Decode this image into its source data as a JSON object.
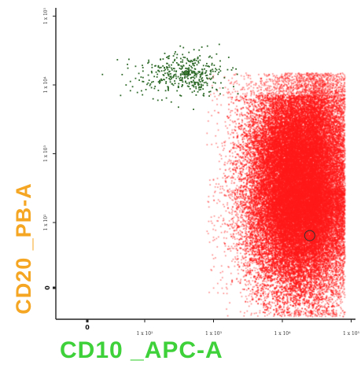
{
  "chart_data": {
    "type": "scatter",
    "title": "",
    "xlabel": "CD10 _APC-A",
    "ylabel": "CD20 _PB-A",
    "x_scale": "biexponential",
    "y_scale": "biexponential",
    "x_ticks": [
      "0",
      "1 x 10²",
      "1 x 10³",
      "1 x 10⁴",
      "1 x 10⁵"
    ],
    "y_ticks": [
      "0",
      "1 x 10²",
      "1 x 10³",
      "1 x 10⁴",
      "1 x 10⁵"
    ],
    "xlim": [
      -100,
      150000
    ],
    "ylim": [
      -100,
      150000
    ],
    "series": [
      {
        "color": "#2f6b2a",
        "center": {
          "x": 400,
          "y": 15000
        },
        "spread_x_decades": [
          0.5,
          0.35
        ],
        "spread_y_decades": [
          0.25,
          0.3
        ],
        "approx_events": 420
      },
      {
        "color": "#ff1a1a",
        "center": {
          "x": 25000,
          "y": 80
        },
        "x_range": [
          2000,
          100000
        ],
        "y_range": [
          -100,
          30000
        ],
        "marker": {
          "x": 25000,
          "y": 80
        },
        "approx_events": 26000
      }
    ]
  }
}
